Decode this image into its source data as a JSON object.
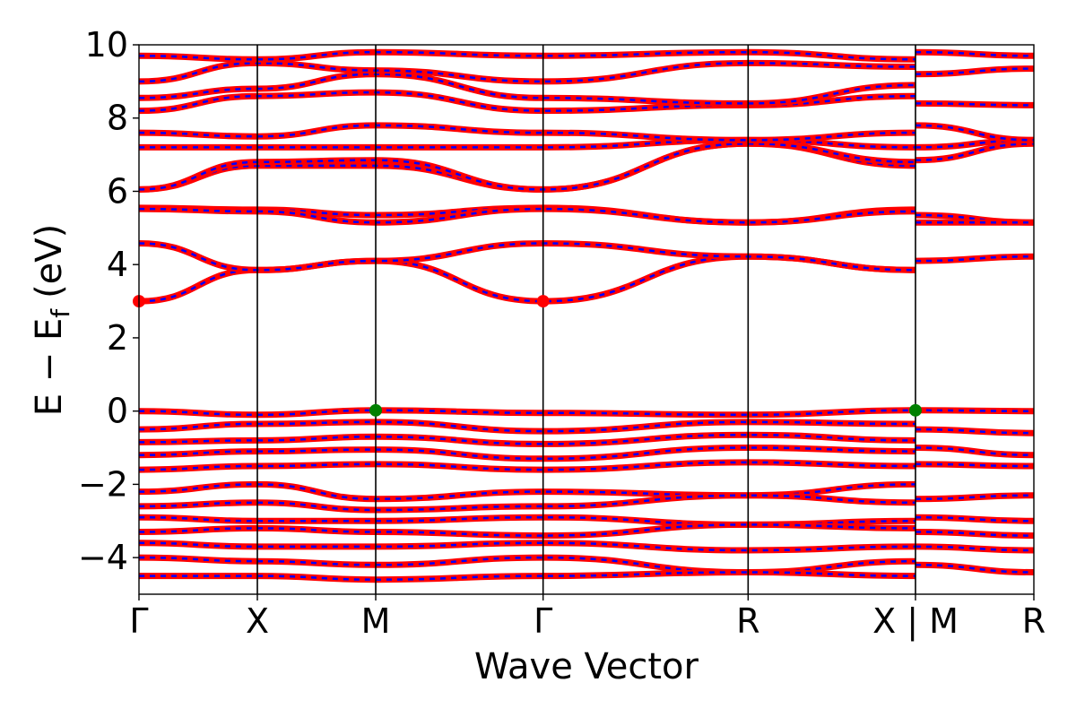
{
  "chart_data": {
    "type": "line",
    "xlabel": "Wave Vector",
    "ylabel": "E − E",
    "ylabel_subscript": "f",
    "ylabel_unit": "(eV)",
    "ylim": [
      -5,
      10
    ],
    "yticks": [
      -4,
      -2,
      0,
      2,
      4,
      6,
      8,
      10
    ],
    "ytick_labels": [
      "−4",
      "−2",
      "0",
      "2",
      "4",
      "6",
      "8",
      "10"
    ],
    "grid": false,
    "kpath": [
      {
        "label": "Γ",
        "k": 0.0
      },
      {
        "label": "X",
        "k": 0.5
      },
      {
        "label": "M",
        "k": 1.0
      },
      {
        "label": "Γ",
        "k": 1.707
      },
      {
        "label": "R",
        "k": 2.573
      },
      {
        "label": "X | M",
        "k": 3.28
      },
      {
        "label": "R",
        "k": 3.78
      }
    ],
    "colors": {
      "band": "#ff0000",
      "band_dash": "#0000ff",
      "cbm": "#ff0000",
      "vbm": "#008000"
    },
    "series": [
      {
        "k": [
          0,
          0.5,
          1.0,
          1.707,
          2.573,
          3.28
        ],
        "e": [
          3.0,
          3.85,
          4.1,
          3.0,
          4.22,
          3.85
        ]
      },
      {
        "k": [
          0,
          0.5,
          1.0,
          1.707,
          2.573,
          3.28
        ],
        "e": [
          4.58,
          3.85,
          4.1,
          4.58,
          4.22,
          3.85
        ]
      },
      {
        "k": [
          3.28,
          3.78
        ],
        "e": [
          4.1,
          4.22
        ]
      },
      {
        "k": [
          0,
          0.5,
          1.0,
          1.707,
          2.573,
          3.28
        ],
        "e": [
          5.55,
          5.5,
          5.35,
          5.55,
          5.15,
          5.5
        ]
      },
      {
        "k": [
          0,
          0.5,
          1.0,
          1.707,
          2.573,
          3.28
        ],
        "e": [
          5.52,
          5.45,
          5.15,
          5.52,
          5.15,
          5.45
        ]
      },
      {
        "k": [
          3.28,
          3.78
        ],
        "e": [
          5.35,
          5.15
        ]
      },
      {
        "k": [
          3.28,
          3.78
        ],
        "e": [
          5.15,
          5.15
        ]
      },
      {
        "k": [
          0,
          0.5,
          1.0,
          1.707,
          2.573,
          3.28
        ],
        "e": [
          6.05,
          6.7,
          6.7,
          6.05,
          7.3,
          6.7
        ]
      },
      {
        "k": [
          0,
          0.5,
          1.0,
          1.707,
          2.573,
          3.28
        ],
        "e": [
          6.05,
          6.8,
          6.85,
          6.05,
          7.3,
          6.8
        ]
      },
      {
        "k": [
          0,
          0.5,
          1.0,
          1.707,
          2.573,
          3.28
        ],
        "e": [
          7.2,
          7.2,
          7.2,
          7.2,
          7.4,
          7.2
        ]
      },
      {
        "k": [
          0,
          0.5,
          1.0,
          1.707,
          2.573,
          3.28
        ],
        "e": [
          7.6,
          7.5,
          7.8,
          7.6,
          7.4,
          7.6
        ]
      },
      {
        "k": [
          3.28,
          3.78
        ],
        "e": [
          6.85,
          7.3
        ]
      },
      {
        "k": [
          3.28,
          3.78
        ],
        "e": [
          7.2,
          7.4
        ]
      },
      {
        "k": [
          3.28,
          3.78
        ],
        "e": [
          7.8,
          7.4
        ]
      },
      {
        "k": [
          0,
          0.5,
          1.0,
          1.707,
          2.573,
          3.28
        ],
        "e": [
          8.2,
          8.6,
          8.7,
          8.2,
          8.35,
          8.6
        ]
      },
      {
        "k": [
          0,
          0.5,
          1.0,
          1.707,
          2.573,
          3.28
        ],
        "e": [
          8.55,
          8.8,
          9.2,
          8.55,
          8.4,
          8.9
        ]
      },
      {
        "k": [
          3.28,
          3.78
        ],
        "e": [
          8.4,
          8.35
        ]
      },
      {
        "k": [
          0,
          0.5,
          1.0,
          1.707,
          2.573,
          3.28
        ],
        "e": [
          9.0,
          9.5,
          9.3,
          9.0,
          9.5,
          9.4
        ]
      },
      {
        "k": [
          0,
          0.5,
          1.0,
          1.707,
          2.573,
          3.28
        ],
        "e": [
          9.7,
          9.6,
          9.8,
          9.7,
          9.8,
          9.6
        ]
      },
      {
        "k": [
          3.28,
          3.78
        ],
        "e": [
          9.2,
          9.35
        ]
      },
      {
        "k": [
          3.28,
          3.78
        ],
        "e": [
          9.8,
          9.7
        ]
      },
      {
        "k": [
          0,
          0.5,
          1.0,
          1.707,
          2.573,
          3.28
        ],
        "e": [
          0.0,
          -0.1,
          0.02,
          -0.05,
          -0.1,
          0.02
        ]
      },
      {
        "k": [
          3.28,
          3.78
        ],
        "e": [
          0.02,
          0.0
        ]
      },
      {
        "k": [
          0,
          0.5,
          1.0,
          1.707,
          2.573,
          3.28
        ],
        "e": [
          -0.5,
          -0.35,
          -0.3,
          -0.55,
          -0.3,
          -0.35
        ]
      },
      {
        "k": [
          0,
          0.5,
          1.0,
          1.707,
          2.573,
          3.28
        ],
        "e": [
          -0.85,
          -0.8,
          -0.7,
          -0.9,
          -0.65,
          -0.8
        ]
      },
      {
        "k": [
          0,
          0.5,
          1.0,
          1.707,
          2.573,
          3.28
        ],
        "e": [
          -1.2,
          -1.1,
          -1.05,
          -1.3,
          -1.0,
          -1.1
        ]
      },
      {
        "k": [
          0,
          0.5,
          1.0,
          1.707,
          2.573,
          3.28
        ],
        "e": [
          -1.6,
          -1.5,
          -1.45,
          -1.6,
          -1.4,
          -1.5
        ]
      },
      {
        "k": [
          3.28,
          3.78
        ],
        "e": [
          -0.5,
          -0.6
        ]
      },
      {
        "k": [
          3.28,
          3.78
        ],
        "e": [
          -1.0,
          -1.2
        ]
      },
      {
        "k": [
          3.28,
          3.78
        ],
        "e": [
          -1.45,
          -1.5
        ]
      },
      {
        "k": [
          0,
          0.5,
          1.0,
          1.707,
          2.573,
          3.28
        ],
        "e": [
          -2.2,
          -2.0,
          -2.4,
          -2.2,
          -2.3,
          -2.0
        ]
      },
      {
        "k": [
          0,
          0.5,
          1.0,
          1.707,
          2.573,
          3.28
        ],
        "e": [
          -2.6,
          -2.5,
          -2.7,
          -2.6,
          -2.3,
          -2.5
        ]
      },
      {
        "k": [
          3.28,
          3.78
        ],
        "e": [
          -2.4,
          -2.3
        ]
      },
      {
        "k": [
          0,
          0.5,
          1.0,
          1.707,
          2.573,
          3.28
        ],
        "e": [
          -2.9,
          -3.0,
          -3.0,
          -2.9,
          -3.1,
          -3.0
        ]
      },
      {
        "k": [
          0,
          0.5,
          1.0,
          1.707,
          2.573,
          3.28
        ],
        "e": [
          -3.3,
          -3.2,
          -3.3,
          -3.4,
          -3.1,
          -3.2
        ]
      },
      {
        "k": [
          3.28,
          3.78
        ],
        "e": [
          -2.9,
          -3.0
        ]
      },
      {
        "k": [
          3.28,
          3.78
        ],
        "e": [
          -3.3,
          -3.4
        ]
      },
      {
        "k": [
          0,
          0.5,
          1.0,
          1.707,
          2.573,
          3.28
        ],
        "e": [
          -3.6,
          -3.7,
          -3.7,
          -3.6,
          -3.8,
          -3.7
        ]
      },
      {
        "k": [
          0,
          0.5,
          1.0,
          1.707,
          2.573,
          3.28
        ],
        "e": [
          -4.0,
          -4.1,
          -4.2,
          -4.0,
          -4.4,
          -4.1
        ]
      },
      {
        "k": [
          0,
          0.5,
          1.0,
          1.707,
          2.573,
          3.28
        ],
        "e": [
          -4.5,
          -4.5,
          -4.6,
          -4.5,
          -4.4,
          -4.5
        ]
      },
      {
        "k": [
          3.28,
          3.78
        ],
        "e": [
          -3.7,
          -3.8
        ]
      },
      {
        "k": [
          3.28,
          3.78
        ],
        "e": [
          -4.2,
          -4.4
        ]
      }
    ],
    "markers": [
      {
        "k": 0.0,
        "e": 3.0,
        "kind": "cbm"
      },
      {
        "k": 1.707,
        "e": 3.0,
        "kind": "cbm"
      },
      {
        "k": 1.0,
        "e": 0.02,
        "kind": "vbm"
      },
      {
        "k": 3.28,
        "e": 0.02,
        "kind": "vbm"
      }
    ]
  }
}
